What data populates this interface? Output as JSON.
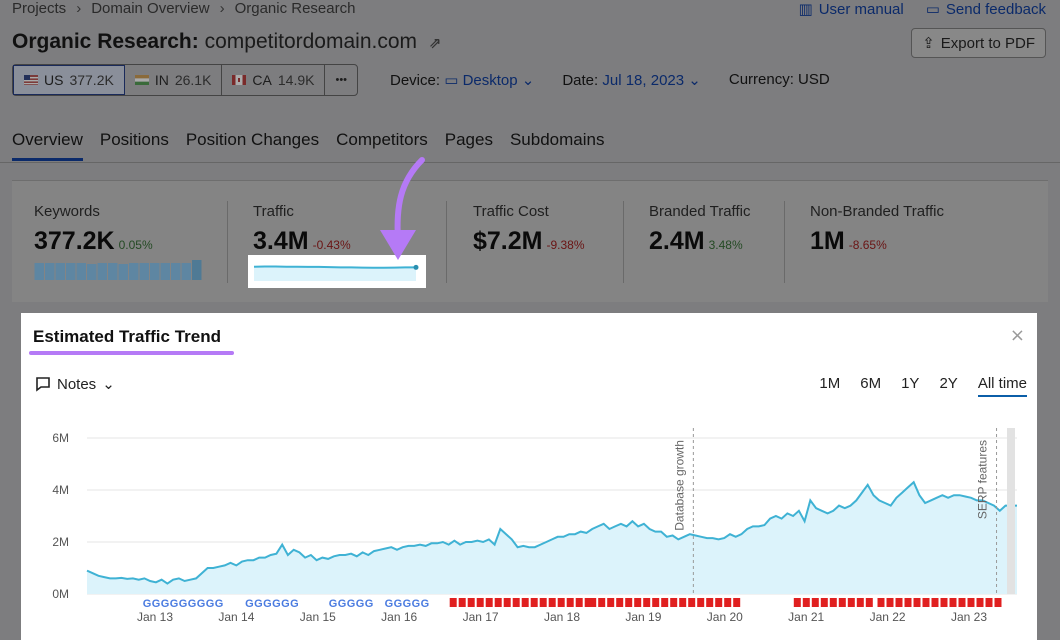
{
  "breadcrumb": [
    "Projects",
    "Domain Overview",
    "Organic Research"
  ],
  "top_links": {
    "manual": "User manual",
    "feedback": "Send feedback"
  },
  "title": {
    "label": "Organic Research:",
    "domain": "competitordomain.com"
  },
  "export_label": "Export to PDF",
  "databases": [
    {
      "code": "US",
      "count": "377.2K",
      "active": true
    },
    {
      "code": "IN",
      "count": "26.1K",
      "active": false
    },
    {
      "code": "CA",
      "count": "14.9K",
      "active": false
    }
  ],
  "more_label": "•••",
  "filters": {
    "device_label": "Device:",
    "device_value": "Desktop",
    "date_label": "Date:",
    "date_value": "Jul 18, 2023",
    "currency": "Currency: USD"
  },
  "tabs": [
    "Overview",
    "Positions",
    "Position Changes",
    "Competitors",
    "Pages",
    "Subdomains"
  ],
  "metrics": [
    {
      "label": "Keywords",
      "value": "377.2K",
      "change": "0.05%",
      "dir": "pos"
    },
    {
      "label": "Traffic",
      "value": "3.4M",
      "change": "-0.43%",
      "dir": "neg"
    },
    {
      "label": "Traffic Cost",
      "value": "$7.2M",
      "change": "-9.38%",
      "dir": "neg"
    },
    {
      "label": "Branded Traffic",
      "value": "2.4M",
      "change": "3.48%",
      "dir": "pos"
    },
    {
      "label": "Non-Branded Traffic",
      "value": "1M",
      "change": "-8.65%",
      "dir": "neg"
    }
  ],
  "panel": {
    "title": "Estimated Traffic Trend",
    "close": "×",
    "notes_label": "Notes",
    "ranges": [
      "1M",
      "6M",
      "1Y",
      "2Y",
      "All time"
    ],
    "active_range": "All time"
  },
  "colors": {
    "line": "#3fb2d4",
    "fill": "#dcf3fb",
    "accent": "#b57af6",
    "marker_google": "#dd3a2a",
    "marker_db": "#e02020"
  },
  "chart_data": {
    "type": "area",
    "series": [
      {
        "values": [
          0.9,
          0.8,
          0.7,
          0.65,
          0.6,
          0.6,
          0.62,
          0.58,
          0.6,
          0.55,
          0.6,
          0.5,
          0.45,
          0.55,
          0.4,
          0.55,
          0.6,
          0.5,
          0.55,
          0.6,
          0.8,
          1.0,
          1.0,
          1.05,
          1.1,
          1.2,
          1.1,
          1.25,
          1.3,
          1.3,
          1.4,
          1.4,
          1.5,
          1.55,
          1.9,
          1.5,
          1.7,
          1.6,
          1.4,
          1.5,
          1.3,
          1.4,
          1.35,
          1.45,
          1.5,
          1.5,
          1.55,
          1.45,
          1.6,
          1.5,
          1.65,
          1.7,
          1.75,
          1.8,
          1.7,
          1.8,
          1.85,
          1.85,
          1.9,
          1.85,
          1.95,
          1.95,
          2.0,
          1.9,
          2.05,
          1.9,
          2.0,
          2.0,
          2.05,
          2.0,
          2.1,
          1.9,
          2.5,
          2.3,
          2.1,
          1.8,
          1.85,
          1.8,
          1.8,
          1.9,
          2.0,
          2.1,
          2.2,
          2.2,
          2.3,
          2.3,
          2.4,
          2.35,
          2.5,
          2.6,
          2.7,
          2.5,
          2.6,
          2.7,
          2.6,
          2.8,
          2.6,
          2.7,
          2.5,
          2.4,
          2.4,
          2.2,
          2.25,
          2.1,
          2.2,
          2.3,
          2.25,
          2.2,
          2.15,
          2.15,
          2.1,
          2.15,
          2.3,
          2.2,
          2.3,
          2.5,
          2.6,
          2.6,
          2.65,
          2.9,
          3.0,
          2.9,
          3.1,
          3.0,
          3.2,
          2.8,
          3.6,
          3.3,
          3.2,
          3.1,
          3.2,
          3.4,
          3.3,
          3.4,
          3.6,
          3.9,
          4.2,
          3.8,
          3.6,
          3.5,
          3.4,
          3.7,
          3.9,
          4.1,
          4.3,
          3.8,
          3.5,
          3.6,
          3.7,
          3.8,
          3.7,
          3.8,
          3.8,
          3.75,
          3.7,
          3.6,
          3.6,
          3.5,
          3.4,
          3.2,
          3.4,
          3.4,
          3.4
        ]
      }
    ],
    "x_tick_labels": [
      "Jan 13",
      "Jan 14",
      "Jan 15",
      "Jan 16",
      "Jan 17",
      "Jan 18",
      "Jan 19",
      "Jan 20",
      "Jan 21",
      "Jan 22",
      "Jan 23"
    ],
    "y_tick_labels": [
      "0M",
      "2M",
      "4M",
      "6M"
    ],
    "ylim": [
      0,
      6
    ],
    "annotations": [
      {
        "text": "Database growth",
        "at": 0.652
      },
      {
        "text": "SERP features",
        "at": 0.978
      }
    ],
    "grid": true,
    "keywords_sparkline": [
      0.85,
      0.85,
      0.85,
      0.85,
      0.85,
      0.8,
      0.85,
      0.85,
      0.8,
      0.85,
      0.85,
      0.85,
      0.85,
      0.85,
      0.85,
      1.0
    ],
    "traffic_sparkline": [
      0.65,
      0.66,
      0.66,
      0.65,
      0.65,
      0.64,
      0.64,
      0.63,
      0.62,
      0.62,
      0.61,
      0.6,
      0.6,
      0.61,
      0.62,
      0.62
    ]
  }
}
